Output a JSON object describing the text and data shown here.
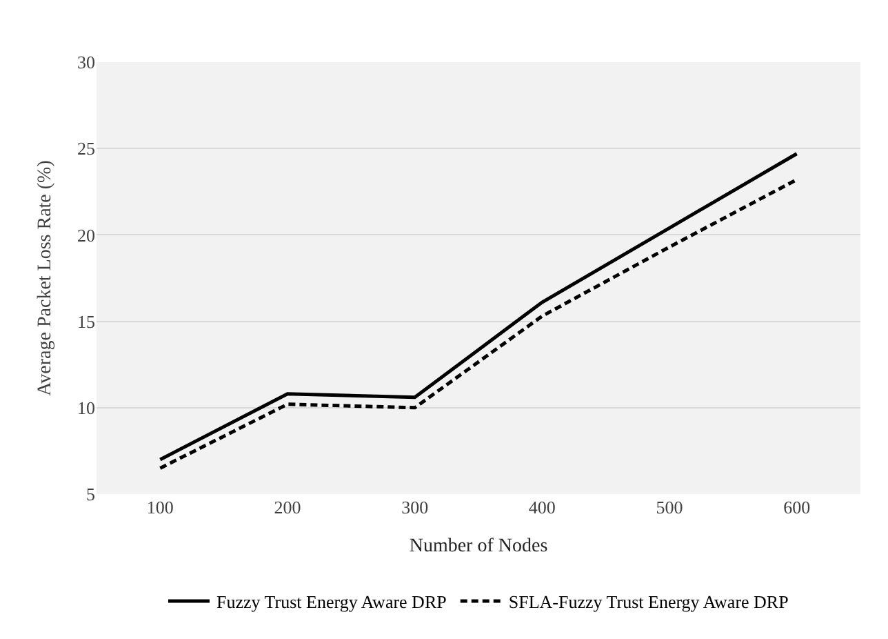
{
  "chart_data": {
    "type": "line",
    "xlabel": "Number of Nodes",
    "ylabel": "Average Packet Loss Rate (%)",
    "categories": [
      "100",
      "200",
      "300",
      "400",
      "500",
      "600"
    ],
    "series": [
      {
        "name": "Fuzzy Trust Energy Aware DRP",
        "color": "#000000",
        "line_style": "solid",
        "values": [
          7,
          10.8,
          10.6,
          16.1,
          20.4,
          24.7
        ]
      },
      {
        "name": "SFLA-Fuzzy Trust Energy Aware DRP",
        "color": "#000000",
        "line_style": "dashed",
        "values": [
          6.5,
          10.2,
          10,
          15.3,
          19.3,
          23.2
        ]
      }
    ],
    "ylim": [
      5,
      30
    ],
    "yticks": [
      5,
      10,
      15,
      20,
      25,
      30
    ],
    "grid": "y",
    "legend": "bottom",
    "marker": "none"
  }
}
